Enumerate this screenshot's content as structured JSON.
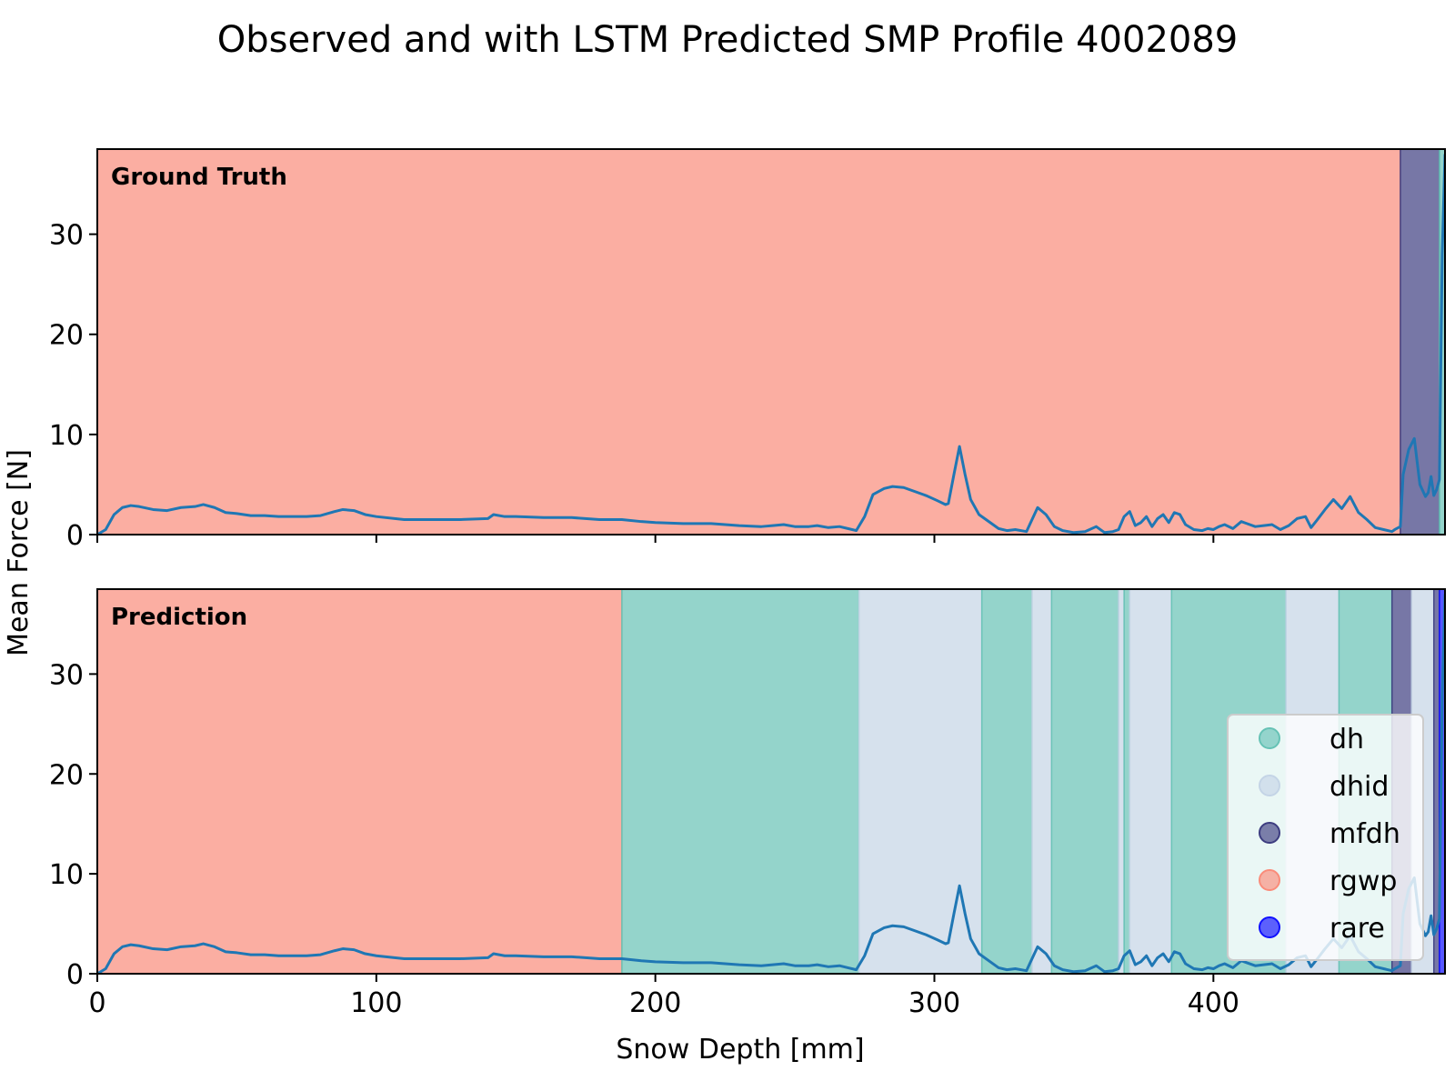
{
  "chart_data": {
    "type": "area",
    "title": "Observed and with LSTM Predicted SMP Profile 4002089",
    "xlabel": "Snow Depth [mm]",
    "ylabel": "Mean Force [N]",
    "xlim": [
      0,
      483
    ],
    "ylim": [
      0,
      38.5
    ],
    "xticks": [
      0,
      100,
      200,
      300,
      400
    ],
    "yticks": [
      0,
      10,
      20,
      30
    ],
    "grid": false,
    "legend_position": "lower-right",
    "class_colors": {
      "dh": "#66c2b5",
      "dhid": "#c4d4e6",
      "mfdh": "#3d3d80",
      "rgwp": "#fa8c7a",
      "rare": "#1010ff"
    },
    "legend": [
      {
        "label": "dh",
        "class": "dh"
      },
      {
        "label": "dhid",
        "class": "dhid"
      },
      {
        "label": "mfdh",
        "class": "mfdh"
      },
      {
        "label": "rgwp",
        "class": "rgwp"
      },
      {
        "label": "rare",
        "class": "rare"
      }
    ],
    "panels": [
      {
        "label": "Ground Truth",
        "segments": [
          {
            "start": 0,
            "end": 467,
            "class": "rgwp"
          },
          {
            "start": 467,
            "end": 481,
            "class": "mfdh"
          },
          {
            "start": 481,
            "end": 483,
            "class": "dh"
          }
        ]
      },
      {
        "label": "Prediction",
        "segments": [
          {
            "start": 0,
            "end": 188,
            "class": "rgwp"
          },
          {
            "start": 188,
            "end": 273,
            "class": "dh"
          },
          {
            "start": 273,
            "end": 317,
            "class": "dhid"
          },
          {
            "start": 317,
            "end": 335,
            "class": "dh"
          },
          {
            "start": 335,
            "end": 342,
            "class": "dhid"
          },
          {
            "start": 342,
            "end": 366,
            "class": "dh"
          },
          {
            "start": 366,
            "end": 368,
            "class": "dhid"
          },
          {
            "start": 368,
            "end": 370,
            "class": "dh"
          },
          {
            "start": 370,
            "end": 385,
            "class": "dhid"
          },
          {
            "start": 385,
            "end": 426,
            "class": "dh"
          },
          {
            "start": 426,
            "end": 445,
            "class": "dhid"
          },
          {
            "start": 445,
            "end": 464,
            "class": "dh"
          },
          {
            "start": 464,
            "end": 471,
            "class": "mfdh"
          },
          {
            "start": 471,
            "end": 479,
            "class": "dhid"
          },
          {
            "start": 479,
            "end": 481,
            "class": "mfdh"
          },
          {
            "start": 481,
            "end": 483,
            "class": "rare"
          }
        ]
      }
    ],
    "series": [
      {
        "color": "#1f77b4",
        "x": [
          0,
          3,
          6,
          9,
          12,
          15,
          20,
          25,
          30,
          35,
          38,
          42,
          46,
          50,
          55,
          60,
          65,
          70,
          75,
          80,
          85,
          88,
          92,
          96,
          100,
          110,
          120,
          130,
          140,
          142,
          146,
          150,
          160,
          170,
          180,
          188,
          195,
          200,
          210,
          220,
          230,
          238,
          242,
          246,
          250,
          255,
          258,
          262,
          266,
          269,
          272,
          275,
          278,
          282,
          285,
          289,
          293,
          297,
          301,
          304,
          305,
          307,
          309,
          311,
          313,
          316,
          320,
          323,
          326,
          329,
          333,
          335,
          337,
          340,
          343,
          346,
          350,
          354,
          358,
          361,
          364,
          366,
          368,
          370,
          372,
          374,
          376,
          378,
          380,
          382,
          384,
          386,
          388,
          390,
          393,
          396,
          398,
          400,
          402,
          404,
          407,
          410,
          412,
          415,
          418,
          421,
          424,
          427,
          430,
          433,
          435,
          437,
          440,
          443,
          446,
          449,
          452,
          455,
          458,
          461,
          464,
          465,
          467,
          468,
          470,
          472,
          474,
          476,
          477,
          478,
          479,
          480,
          481,
          482,
          483
        ],
        "y": [
          0,
          0.5,
          2,
          2.7,
          2.9,
          2.8,
          2.5,
          2.4,
          2.7,
          2.8,
          3.0,
          2.7,
          2.2,
          2.1,
          1.9,
          1.9,
          1.8,
          1.8,
          1.8,
          1.9,
          2.3,
          2.5,
          2.4,
          2.0,
          1.8,
          1.5,
          1.5,
          1.5,
          1.6,
          2.0,
          1.8,
          1.8,
          1.7,
          1.7,
          1.5,
          1.5,
          1.3,
          1.2,
          1.1,
          1.1,
          0.9,
          0.8,
          0.9,
          1.0,
          0.8,
          0.8,
          0.9,
          0.7,
          0.8,
          0.6,
          0.4,
          1.8,
          4.0,
          4.6,
          4.8,
          4.7,
          4.3,
          3.9,
          3.4,
          3.0,
          3.1,
          6.0,
          8.8,
          6.0,
          3.5,
          2.0,
          1.2,
          0.6,
          0.4,
          0.5,
          0.3,
          1.5,
          2.7,
          2.0,
          0.8,
          0.4,
          0.2,
          0.3,
          0.8,
          0.2,
          0.3,
          0.5,
          1.8,
          2.3,
          0.9,
          1.2,
          1.8,
          0.8,
          1.6,
          2.0,
          1.2,
          2.2,
          2.0,
          1.0,
          0.5,
          0.4,
          0.6,
          0.5,
          0.8,
          1.0,
          0.6,
          1.3,
          1.1,
          0.8,
          0.9,
          1.0,
          0.5,
          0.9,
          1.6,
          1.8,
          0.7,
          1.4,
          2.5,
          3.5,
          2.6,
          3.8,
          2.2,
          1.5,
          0.7,
          0.5,
          0.3,
          0.5,
          0.8,
          6.0,
          8.5,
          9.6,
          5.0,
          3.8,
          4.2,
          5.8,
          3.9,
          4.5,
          5.5,
          28.0,
          38.0
        ]
      }
    ]
  }
}
